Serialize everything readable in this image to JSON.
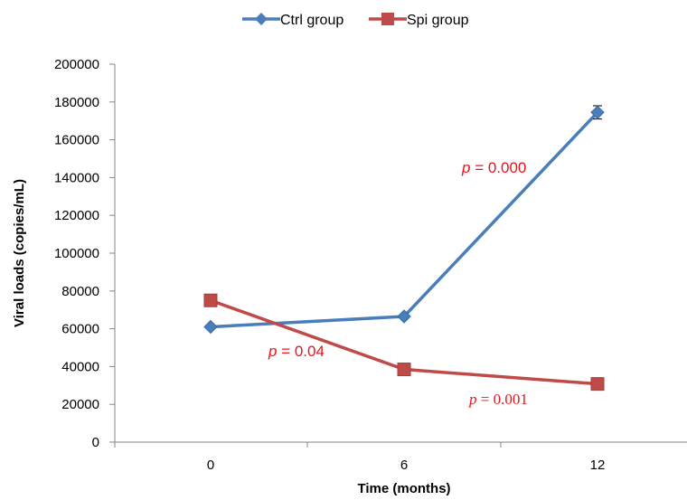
{
  "chart_data": {
    "type": "line",
    "title": "",
    "xlabel": "Time (months)",
    "ylabel": "Viral loads (copies/mL)",
    "categories": [
      "0",
      "6",
      "12"
    ],
    "ylim": [
      0,
      200000
    ],
    "y_ticks": [
      "0",
      "20000",
      "40000",
      "60000",
      "80000",
      "100000",
      "120000",
      "140000",
      "160000",
      "180000",
      "200000"
    ],
    "grid": false,
    "legend_position": "top-center",
    "series": [
      {
        "name": "Ctrl group",
        "values": [
          61000,
          66500,
          174500
        ],
        "errors": [
          0,
          0,
          3500
        ],
        "color": "#4a7ebb",
        "marker": "diamond"
      },
      {
        "name": "Spi group",
        "values": [
          75000,
          38500,
          30800
        ],
        "errors": [
          0,
          2500,
          0
        ],
        "color": "#be4b48",
        "marker": "square"
      }
    ],
    "annotations": [
      {
        "italic": "p",
        "rest": " = 0.000",
        "color": "#e8141c",
        "font": "sans"
      },
      {
        "italic": "p",
        "rest": " = 0.04",
        "color": "#e8141c",
        "font": "sans"
      },
      {
        "italic": "p",
        "rest": " = 0.001",
        "color": "#e8141c",
        "font": "serif"
      }
    ]
  }
}
